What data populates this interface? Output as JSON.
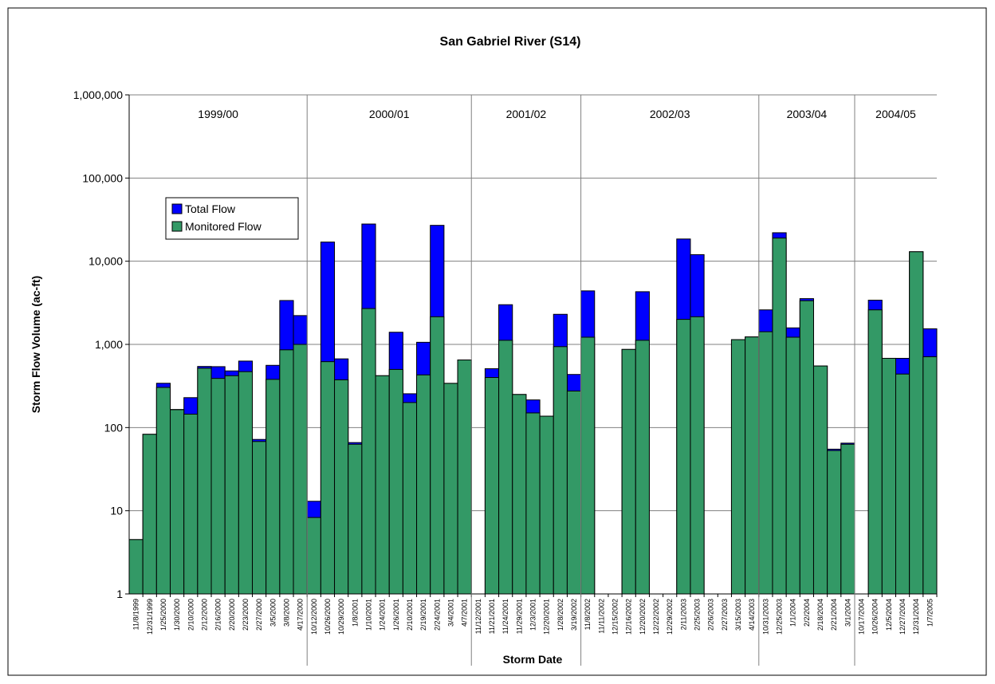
{
  "chart_data": {
    "type": "bar",
    "title": "San Gabriel River (S14)",
    "x_label": "Storm Date",
    "y_label": "Storm Flow Volume (ac-ft)",
    "log_scale": true,
    "grid": true,
    "legend": "upper-left",
    "ylim": [
      1,
      1000000
    ],
    "yticks": [
      1,
      10,
      100,
      {
        "value": 1000,
        "label": "1,000"
      },
      {
        "value": 10000,
        "label": "10,000"
      },
      {
        "value": 100000,
        "label": "100,000"
      },
      {
        "value": 1000000,
        "label": "1,000,000"
      }
    ],
    "groups": [
      {
        "label": "1999/00",
        "categories": [
          "11/8/1999",
          "12/31/1999",
          "1/25/2000",
          "1/30/2000",
          "2/10/2000",
          "2/12/2000",
          "2/16/2000",
          "2/20/2000",
          "2/23/2000",
          "2/27/2000",
          "3/5/2000",
          "3/8/2000",
          "4/17/2000"
        ]
      },
      {
        "label": "2000/01",
        "categories": [
          "10/12/2000",
          "10/26/2000",
          "10/29/2000",
          "1/8/2001",
          "1/10/2001",
          "1/24/2001",
          "1/26/2001",
          "2/10/2001",
          "2/19/2001",
          "2/24/2001",
          "3/4/2001",
          "4/7/2001"
        ]
      },
      {
        "label": "2001/02",
        "categories": [
          "11/12/2001",
          "11/21/2001",
          "11/24/2001",
          "11/29/2001",
          "12/3/2001",
          "12/20/2001",
          "1/28/2002",
          "3/19/2002"
        ]
      },
      {
        "label": "2002/03",
        "categories": [
          "11/8/2002",
          "11/11/2002",
          "12/15/2002",
          "12/16/2002",
          "12/20/2002",
          "12/22/2002",
          "12/29/2002",
          "2/11/2003",
          "2/25/2003",
          "2/26/2003",
          "2/27/2003",
          "3/15/2003",
          "4/14/2003"
        ]
      },
      {
        "label": "2003/04",
        "categories": [
          "10/31/2003",
          "12/25/2003",
          "1/1/2004",
          "2/2/2004",
          "2/18/2004",
          "2/21/2004",
          "3/1/2004"
        ]
      },
      {
        "label": "2004/05",
        "categories": [
          "10/17/2004",
          "10/26/2004",
          "12/5/2004",
          "12/27/2004",
          "12/31/2004",
          "1/7/2005"
        ]
      }
    ],
    "series": [
      {
        "name": "Total Flow",
        "color": "#0000ff",
        "values": [
          4.5,
          83,
          341,
          165,
          229,
          543,
          540,
          480,
          630,
          72,
          560,
          3370,
          2220,
          13,
          17000,
          670,
          66,
          28000,
          420,
          1400,
          255,
          1060,
          27000,
          340,
          650,
          null,
          510,
          3000,
          250,
          215,
          137,
          2300,
          435,
          4400,
          null,
          null,
          870,
          4300,
          null,
          null,
          18500,
          12000,
          null,
          null,
          1140,
          1230,
          2600,
          22000,
          1580,
          3550,
          550,
          55,
          65,
          null,
          3400,
          680,
          680,
          13000,
          1540
        ]
      },
      {
        "name": "Monitored Flow",
        "color": "#339966",
        "values": [
          4.5,
          83,
          304,
          164,
          145,
          517,
          390,
          420,
          470,
          68,
          380,
          860,
          1000,
          8.3,
          620,
          375,
          63,
          2700,
          420,
          500,
          200,
          430,
          2150,
          340,
          650,
          null,
          400,
          1120,
          250,
          150,
          137,
          940,
          275,
          1220,
          null,
          null,
          870,
          1120,
          null,
          null,
          2000,
          2150,
          null,
          null,
          1140,
          1230,
          1420,
          19000,
          1220,
          3350,
          550,
          53,
          63,
          null,
          2600,
          680,
          440,
          13000,
          710
        ]
      }
    ]
  }
}
